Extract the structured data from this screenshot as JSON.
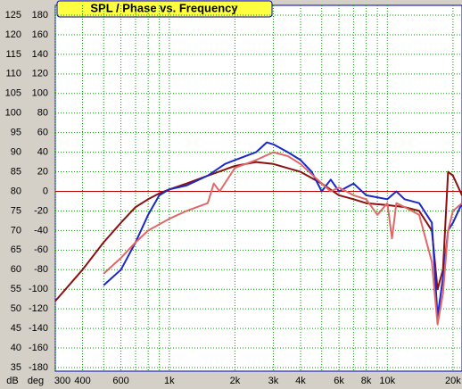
{
  "chart_data": {
    "type": "line",
    "title": "SPL / Phase vs. Frequency",
    "y_label": "dB",
    "y2_label": "deg",
    "log_x": true,
    "grid": true,
    "xlim": [
      300,
      22000
    ],
    "xticks": [
      {
        "value": 300,
        "label": "300"
      },
      {
        "value": 400,
        "label": "400"
      },
      {
        "value": 600,
        "label": "600"
      },
      {
        "value": 1000,
        "label": "1k"
      },
      {
        "value": 2000,
        "label": "2k"
      },
      {
        "value": 3000,
        "label": "3k"
      },
      {
        "value": 4000,
        "label": "4k"
      },
      {
        "value": 6000,
        "label": "6k"
      },
      {
        "value": 8000,
        "label": "8k"
      },
      {
        "value": 10000,
        "label": "10k"
      },
      {
        "value": 20000,
        "label": "20k"
      }
    ],
    "xminorticks": [
      500,
      700,
      800,
      900,
      5000,
      7000,
      9000
    ],
    "ylim": [
      35,
      125
    ],
    "yticks": [
      35,
      40,
      45,
      50,
      55,
      60,
      65,
      70,
      75,
      80,
      85,
      90,
      95,
      100,
      105,
      110,
      115,
      120,
      125
    ],
    "y2lim": [
      -180,
      180
    ],
    "y2ticks": [
      -180,
      -160,
      -140,
      -120,
      -100,
      -80,
      -60,
      -40,
      -20,
      0,
      20,
      40,
      60,
      80,
      100,
      120,
      140,
      160,
      180
    ],
    "reference_line": 80,
    "reference_color": "#c00000",
    "series": [
      {
        "color": "#8b1010",
        "x": [
          300,
          400,
          500,
          600,
          700,
          800,
          900,
          1000,
          1200,
          1500,
          2000,
          2500,
          3000,
          4000,
          5000,
          6000,
          7000,
          8000,
          10000,
          12000,
          14000,
          16000,
          17000,
          18000,
          19000,
          20000,
          22000
        ],
        "values": [
          52,
          60,
          67,
          72,
          76,
          78,
          79.5,
          80.5,
          82,
          84,
          86.5,
          87.5,
          87,
          85,
          82,
          79,
          78,
          77,
          76.5,
          76,
          75,
          70,
          55,
          60,
          85,
          84,
          79
        ]
      },
      {
        "color": "#1c28c8",
        "x": [
          500,
          600,
          700,
          800,
          900,
          1000,
          1200,
          1500,
          1800,
          2000,
          2500,
          2800,
          3000,
          3500,
          4000,
          4500,
          5000,
          5500,
          6000,
          7000,
          8000,
          10000,
          11000,
          12000,
          14000,
          16000,
          17000,
          18000,
          19000,
          20000,
          22000
        ],
        "values": [
          56,
          60,
          67,
          74,
          79,
          80.5,
          81.5,
          84,
          87,
          88,
          90,
          92.5,
          92,
          90,
          88,
          85,
          80,
          83,
          80,
          82,
          79,
          78,
          80,
          78,
          77,
          72,
          48,
          58,
          70,
          72,
          77
        ]
      },
      {
        "color": "#e06868",
        "x": [
          500,
          600,
          700,
          800,
          1000,
          1200,
          1500,
          1600,
          1700,
          2000,
          2500,
          3000,
          3500,
          4000,
          5000,
          5500,
          6000,
          7000,
          8000,
          9000,
          10000,
          10500,
          11000,
          12000,
          14000,
          16000,
          17000,
          18000,
          19000,
          20000,
          22000
        ],
        "values": [
          59,
          63,
          67,
          70,
          73,
          75,
          77,
          82,
          80,
          86,
          88,
          90,
          89,
          87,
          82,
          80,
          81,
          79,
          78,
          74,
          77,
          68,
          77,
          76,
          74,
          62,
          46,
          54,
          70,
          75,
          77
        ]
      }
    ]
  }
}
